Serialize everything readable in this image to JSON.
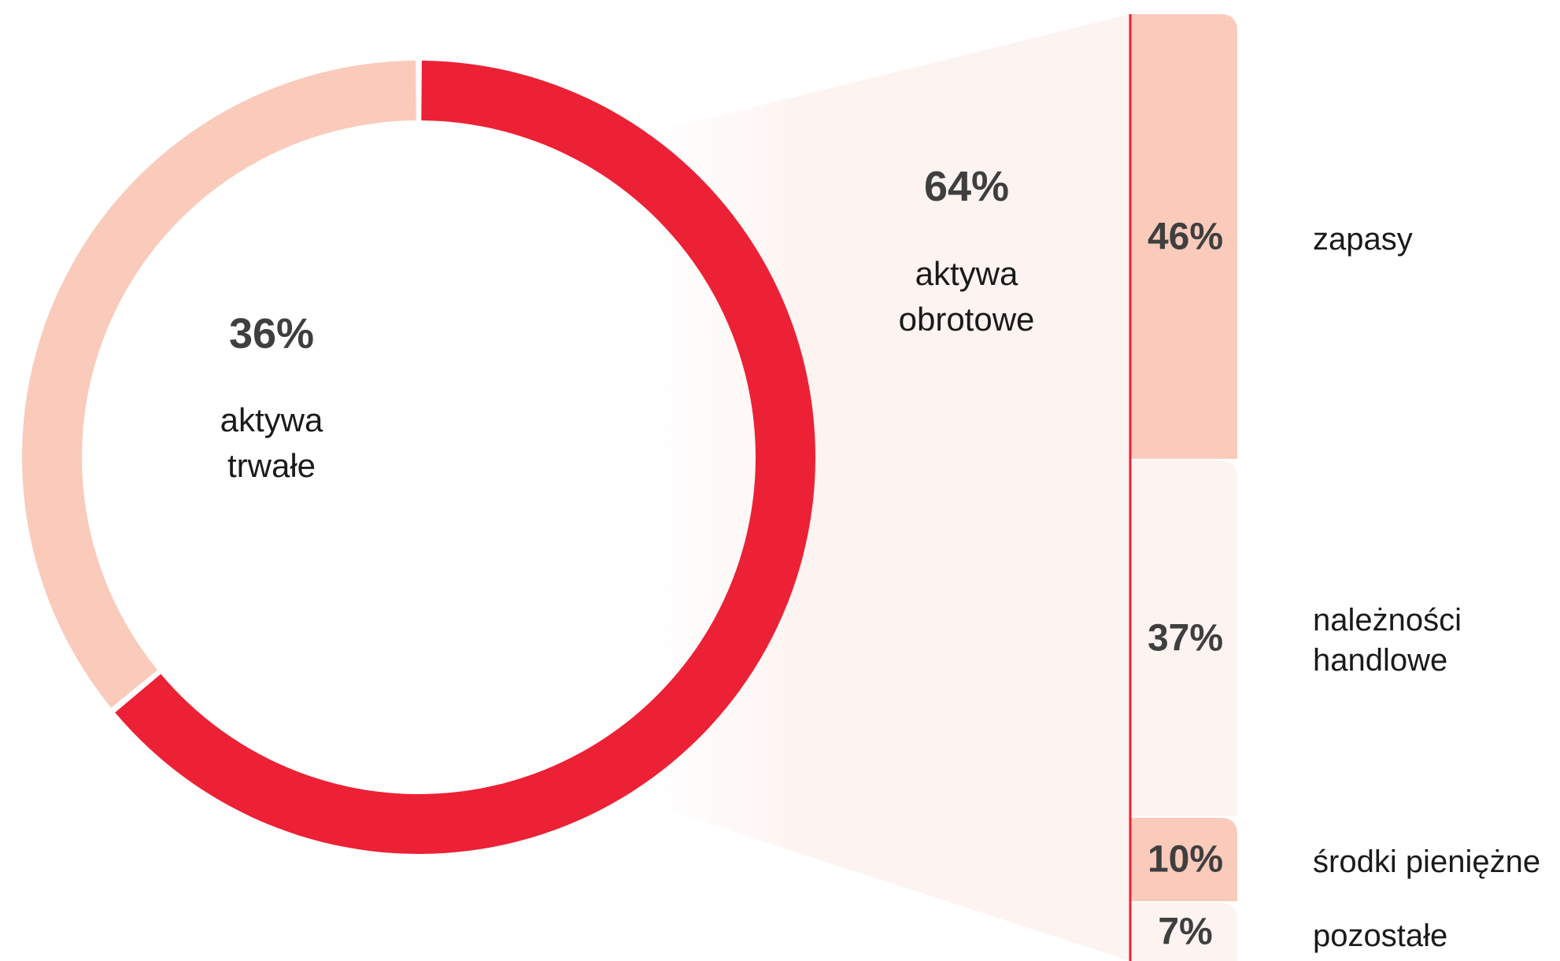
{
  "colors": {
    "accent": "#EC2135",
    "light": "#FACABB",
    "pale": "#FDF3F0",
    "text": "#3F3F3F",
    "label": "#1A1A1A"
  },
  "chart_data": [
    {
      "type": "pie",
      "style": "donut",
      "slices": [
        {
          "value": 64,
          "value_label": "64%",
          "label": "aktywa obrotowe",
          "label_lines": [
            "aktywa",
            "obrotowe"
          ],
          "color": "#EC2135"
        },
        {
          "value": 36,
          "value_label": "36%",
          "label": "aktywa trwałe",
          "label_lines": [
            "aktywa",
            "trwałe"
          ],
          "color": "#FACABB"
        }
      ]
    },
    {
      "type": "bar",
      "stacked": true,
      "orientation": "vertical",
      "parent": "aktywa obrotowe",
      "segments": [
        {
          "value": 46,
          "value_label": "46%",
          "label": "zapasy",
          "label_lines": [
            "zapasy"
          ],
          "color": "#FACABB"
        },
        {
          "value": 37,
          "value_label": "37%",
          "label": "należności handlowe",
          "label_lines": [
            "należności",
            "handlowe"
          ],
          "color": "#FDF3F0"
        },
        {
          "value": 10,
          "value_label": "10%",
          "label": "środki pieniężne",
          "label_lines": [
            "środki pieniężne"
          ],
          "color": "#FACABB"
        },
        {
          "value": 7,
          "value_label": "7%",
          "label": "pozostałe",
          "label_lines": [
            "pozostałe"
          ],
          "color": "#FDF3F0"
        }
      ]
    }
  ]
}
